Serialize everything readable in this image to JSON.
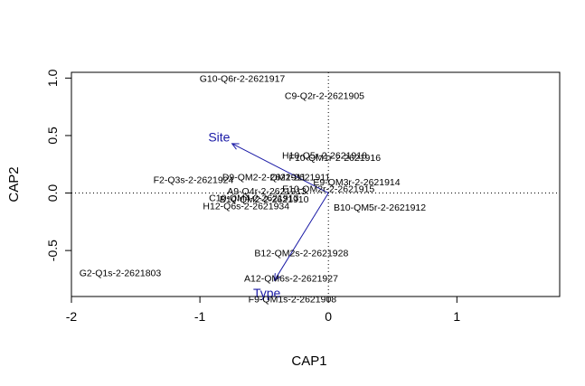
{
  "chart_data": {
    "type": "scatter",
    "xlabel": "CAP1",
    "ylabel": "CAP2",
    "xlim": [
      -2.0,
      1.8
    ],
    "ylim": [
      -0.9,
      1.05
    ],
    "x_ticks": [
      -2,
      -1,
      0,
      1
    ],
    "y_ticks": [
      -0.5,
      0.0,
      0.5,
      1.0
    ],
    "y_tick_labels": [
      "-0.5",
      "0.0",
      "0.5",
      "1.0"
    ],
    "reference_lines": {
      "x": 0,
      "y": 0,
      "style": "dotted"
    },
    "vector_color": "#1a1aa6",
    "vectors": [
      {
        "label": "Site",
        "x": -0.75,
        "y": 0.43
      },
      {
        "label": "Type",
        "x": -0.42,
        "y": -0.76
      }
    ],
    "points": [
      {
        "label": "G10-Q6r-2-2621917",
        "x": -0.67,
        "y": 1.0
      },
      {
        "label": "C9-Q2r-2-2621905",
        "x": -0.03,
        "y": 0.85
      },
      {
        "label": "H10-Q5r-2-2621918",
        "x": -0.03,
        "y": 0.33
      },
      {
        "label": "F10-QM1r-2-2621916",
        "x": 0.05,
        "y": 0.31
      },
      {
        "label": "D9-QM2-2-2621911",
        "x": -0.5,
        "y": 0.14
      },
      {
        "label": "QM2-2621911",
        "x": -0.22,
        "y": 0.14
      },
      {
        "label": "E9-QM3r-2-2621914",
        "x": 0.22,
        "y": 0.1
      },
      {
        "label": "F2-Q3s-2-2621924",
        "x": -1.05,
        "y": 0.12
      },
      {
        "label": "A9-Q4r-2-2621913",
        "x": -0.48,
        "y": 0.02
      },
      {
        "label": "E10-QM2r-2-2621915",
        "x": 0.0,
        "y": 0.04
      },
      {
        "label": "C10-QM4-2-2621913",
        "x": -0.58,
        "y": -0.04
      },
      {
        "label": "B10-QM2-2-2621910",
        "x": -0.5,
        "y": -0.05
      },
      {
        "label": "H12-Q6s-2-2621934",
        "x": -0.64,
        "y": -0.11
      },
      {
        "label": "B10-QM5r-2-2621912",
        "x": 0.4,
        "y": -0.12
      },
      {
        "label": "B12-QM2s-2-2621928",
        "x": -0.21,
        "y": -0.52
      },
      {
        "label": "G2-Q1s-2-2621803",
        "x": -1.62,
        "y": -0.69
      },
      {
        "label": "A12-QM6s-2-2621927",
        "x": -0.29,
        "y": -0.74
      },
      {
        "label": "F9-QM1s-2-2621908",
        "x": -0.28,
        "y": -0.92
      }
    ]
  }
}
